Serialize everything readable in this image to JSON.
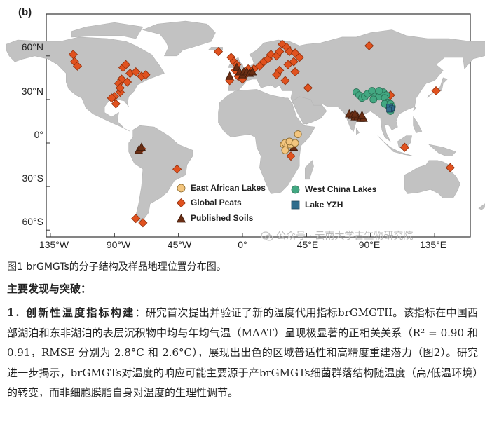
{
  "figure": {
    "panel_label": "(b)",
    "y_axis_labels": [
      "60°N",
      "30°N",
      "0°",
      "30°S",
      "60°S"
    ],
    "x_axis_labels": [
      "135°W",
      "90°W",
      "45°W",
      "0°",
      "45°E",
      "90°E",
      "135°E"
    ],
    "colors": {
      "ocean": "#ffffff",
      "land": "#c2c2c2",
      "frame": "#333333",
      "east_african_lakes": "#f3c57e",
      "global_peats": "#e0521f",
      "published_soils": "#6a2e14",
      "west_china_lakes": "#43a882",
      "lake_yzh": "#2f6d8c"
    },
    "legend": {
      "east_african_lakes": "East African Lakes",
      "global_peats": "Global Peats",
      "published_soils": "Published Soils",
      "west_china_lakes": "West China Lakes",
      "lake_yzh": "Lake YZH"
    },
    "sites": {
      "global_peats": [
        [
          -119,
          61
        ],
        [
          -118,
          56
        ],
        [
          -116,
          53
        ],
        [
          -84,
          52
        ],
        [
          -82,
          54
        ],
        [
          -79,
          48
        ],
        [
          -75,
          49
        ],
        [
          -71,
          46
        ],
        [
          -68,
          47
        ],
        [
          -85,
          44
        ],
        [
          -87,
          41
        ],
        [
          -86,
          35
        ],
        [
          -90,
          32
        ],
        [
          -92,
          31
        ],
        [
          -89,
          27
        ],
        [
          -86,
          38
        ],
        [
          -81,
          42
        ],
        [
          -17,
          63
        ],
        [
          -8,
          59
        ],
        [
          -6,
          56
        ],
        [
          -4,
          54
        ],
        [
          -5,
          50
        ],
        [
          -3,
          46
        ],
        [
          0,
          44
        ],
        [
          2,
          47
        ],
        [
          4,
          51
        ],
        [
          8,
          51
        ],
        [
          12,
          53
        ],
        [
          15,
          56
        ],
        [
          18,
          58
        ],
        [
          20,
          61
        ],
        [
          24,
          60
        ],
        [
          26,
          63
        ],
        [
          28,
          68
        ],
        [
          31,
          66
        ],
        [
          33,
          63
        ],
        [
          37,
          62
        ],
        [
          40,
          59
        ],
        [
          36,
          56
        ],
        [
          32,
          54
        ],
        [
          26,
          50
        ],
        [
          24,
          47
        ],
        [
          30,
          43
        ],
        [
          37,
          49
        ],
        [
          -9,
          43
        ],
        [
          46,
          38
        ],
        [
          89,
          67
        ],
        [
          104,
          33
        ],
        [
          136,
          36
        ],
        [
          114,
          -3
        ],
        [
          146,
          -17
        ],
        [
          -46,
          -18
        ],
        [
          -71,
          -4
        ],
        [
          -75,
          -52
        ],
        [
          -70,
          -55
        ],
        [
          34,
          -9
        ]
      ],
      "published_soils": [
        [
          -9,
          46
        ],
        [
          -4,
          52
        ],
        [
          -2,
          49
        ],
        [
          0,
          47
        ],
        [
          1,
          49
        ],
        [
          3,
          49
        ],
        [
          5,
          48
        ],
        [
          7,
          49
        ],
        [
          75,
          20
        ],
        [
          77,
          19
        ],
        [
          79,
          18
        ],
        [
          81,
          18
        ],
        [
          79,
          20
        ],
        [
          83,
          17
        ],
        [
          85,
          17
        ],
        [
          84,
          19
        ],
        [
          -73,
          -5
        ],
        [
          -71,
          -3
        ],
        [
          36,
          -3
        ]
      ],
      "east_african_lakes": [
        [
          29,
          -1
        ],
        [
          30,
          0
        ],
        [
          32,
          -1
        ],
        [
          30,
          -5
        ],
        [
          34,
          -1
        ],
        [
          33,
          1
        ],
        [
          37,
          0
        ],
        [
          39,
          6
        ]
      ],
      "west_china_lakes": [
        [
          80,
          35
        ],
        [
          82,
          33
        ],
        [
          84,
          31
        ],
        [
          86,
          32
        ],
        [
          88,
          34
        ],
        [
          91,
          36
        ],
        [
          93,
          32
        ],
        [
          96,
          32
        ],
        [
          99,
          35
        ],
        [
          101,
          33
        ],
        [
          100,
          31
        ],
        [
          92,
          30
        ],
        [
          96,
          36
        ],
        [
          102,
          28
        ],
        [
          103,
          25
        ],
        [
          104,
          22
        ],
        [
          100,
          27
        ],
        [
          104,
          27
        ],
        [
          105,
          25
        ]
      ],
      "lake_yzh": [
        [
          103,
          25
        ],
        [
          104,
          25
        ],
        [
          104,
          23
        ],
        [
          105,
          24
        ],
        [
          103,
          23
        ]
      ]
    },
    "watermark": "公众号 · 云南大学古生物研究院"
  },
  "caption": "图1 brGMGTs的分子结构及样品地理位置分布图。",
  "heading": "主要发现与突破：",
  "paragraph": {
    "title": "1. 创新性温度指标构建",
    "body": "：研究首次提出并验证了新的温度代用指标brGMGTII。该指标在中国西部湖泊和东非湖泊的表层沉积物中均与年均气温（MAAT）呈现极显著的正相关关系（R² = 0.90 和 0.91，RMSE 分别为 2.8°C 和 2.6°C），展现出出色的区域普适性和高精度重建潜力（图2）。研究进一步揭示，brGMGTs对温度的响应可能主要源于产brGMGTs细菌群落结构随温度（高/低温环境）的转变，而非细胞膜脂自身对温度的生理性调节。"
  }
}
